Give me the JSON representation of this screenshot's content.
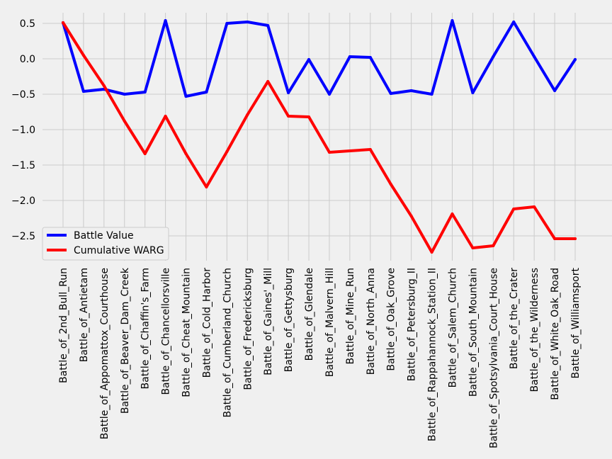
{
  "chart_data": {
    "type": "line",
    "title": "",
    "xlabel": "",
    "ylabel": "",
    "grid": true,
    "legend_position": "lower-left",
    "ylim": [
      -2.85,
      0.65
    ],
    "yticks": [
      "0.5",
      "0.0",
      "−0.5",
      "−1.0",
      "−1.5",
      "−2.0",
      "−2.5"
    ],
    "ytick_values": [
      0.5,
      0.0,
      -0.5,
      -1.0,
      -1.5,
      -2.0,
      -2.5
    ],
    "categories": [
      "Battle_of_2nd_Bull_Run",
      "Battle_of_Antietam",
      "Battle_of_Appomattox_Courthouse",
      "Battle_of_Beaver_Dam_Creek",
      "Battle_of_Chaffin's_Farm",
      "Battle_of_Chancellorsville",
      "Battle_of_Cheat_Mountain",
      "Battle_of_Cold_Harbor",
      "Battle_of_Cumberland_Church",
      "Battle_of_Fredericksburg",
      "Battle_of_Gaines'_Mill",
      "Battle_of_Gettysburg",
      "Battle_of_Glendale",
      "Battle_of_Malvern_Hill",
      "Battle_of_Mine_Run",
      "Battle_of_North_Anna",
      "Battle_of_Oak_Grove",
      "Battle_of_Petersburg_II",
      "Battle_of_Rappahannock_Station_II",
      "Battle_of_Salem_Church",
      "Battle_of_South_Mountain",
      "Battle_of_Spotsylvania_Court_House",
      "Battle_of_the_Crater",
      "Battle_of_the_Wilderness",
      "Battle_of_White_Oak_Road",
      "Battle_of_Williamsport"
    ],
    "series": [
      {
        "name": "Battle Value",
        "color": "#0000ff",
        "values": [
          0.51,
          -0.46,
          -0.43,
          -0.5,
          -0.47,
          0.54,
          -0.53,
          -0.47,
          0.5,
          0.52,
          0.47,
          -0.48,
          -0.01,
          -0.5,
          0.03,
          0.02,
          -0.49,
          -0.45,
          -0.5,
          0.54,
          -0.48,
          0.03,
          0.52,
          0.03,
          -0.45,
          -0.01
        ]
      },
      {
        "name": "Cumulative WARG",
        "color": "#ff0000",
        "values": [
          0.51,
          0.05,
          -0.38,
          -0.88,
          -1.34,
          -0.81,
          -1.34,
          -1.81,
          -1.31,
          -0.79,
          -0.32,
          -0.81,
          -0.82,
          -1.32,
          -1.3,
          -1.28,
          -1.77,
          -2.22,
          -2.73,
          -2.19,
          -2.67,
          -2.64,
          -2.12,
          -2.09,
          -2.54,
          -2.54
        ]
      }
    ]
  }
}
